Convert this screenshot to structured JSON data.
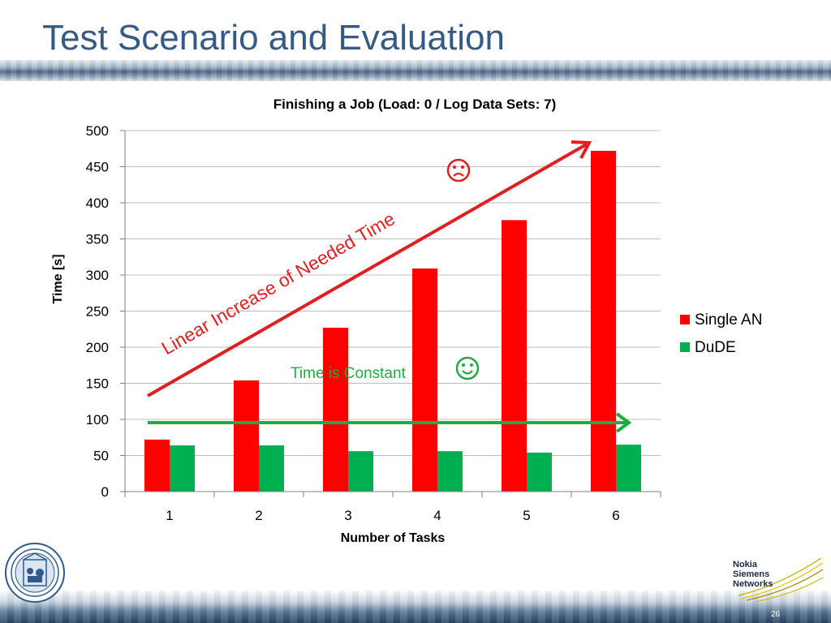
{
  "slide": {
    "title": "Test Scenario and Evaluation",
    "page_number": "26",
    "logo_text": "Nokia Siemens Networks"
  },
  "colors": {
    "title": "#355b85",
    "single_an": "#ff0000",
    "dude": "#00b050",
    "annotation_red": "#e02020",
    "annotation_green": "#22aa44"
  },
  "chart_data": {
    "type": "bar",
    "title": "Finishing a Job (Load: 0 / Log Data Sets: 7)",
    "xlabel": "Number of Tasks",
    "ylabel": "Time [s]",
    "ylim": [
      0,
      500
    ],
    "yticks": [
      0,
      50,
      100,
      150,
      200,
      250,
      300,
      350,
      400,
      450,
      500
    ],
    "categories": [
      "1",
      "2",
      "3",
      "4",
      "5",
      "6"
    ],
    "series": [
      {
        "name": "Single AN",
        "color": "#ff0000",
        "values": [
          72,
          154,
          227,
          309,
          376,
          472
        ]
      },
      {
        "name": "DuDE",
        "color": "#00b050",
        "values": [
          64,
          64,
          56,
          56,
          54,
          65
        ]
      }
    ],
    "grid": true,
    "legend": "right",
    "annotations": [
      {
        "text": "Linear Increase of Needed Time",
        "icon": "sad-face-icon",
        "color": "#e02020"
      },
      {
        "text": "Time is Constant",
        "icon": "smiley-face-icon",
        "color": "#22aa44"
      }
    ]
  }
}
